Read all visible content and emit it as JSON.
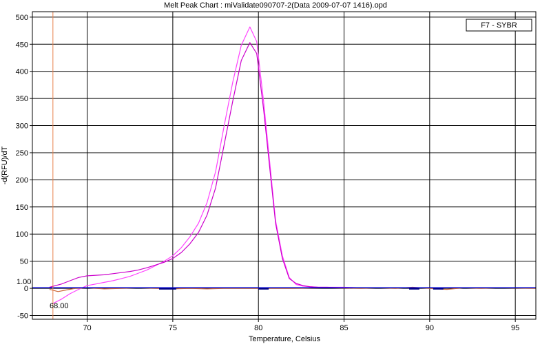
{
  "chart_data": {
    "type": "line",
    "title": "Melt Peak Chart : miValidate090707-2(Data 2009-07-07 1416).opd",
    "xlabel": "Temperature, Celsius",
    "ylabel": "-d(RFU)/dT",
    "xlim": [
      66.8,
      96.2
    ],
    "ylim": [
      -57,
      510
    ],
    "xticks": [
      70,
      75,
      80,
      85,
      90,
      95
    ],
    "yticks": [
      -50,
      0,
      50,
      100,
      150,
      200,
      250,
      300,
      350,
      400,
      450,
      500
    ],
    "grid": true,
    "legend": {
      "label": "F7 - SYBR",
      "position": "top-right"
    },
    "threshold": {
      "y": 1.0,
      "label": "1.00"
    },
    "marker": {
      "x": 68.0,
      "label": "68.00"
    },
    "series": [
      {
        "color": "#ff40ff",
        "x": [
          68.0,
          68.5,
          69.0,
          69.5,
          70.0,
          70.5,
          71.0,
          71.5,
          72.0,
          72.5,
          73.0,
          73.5,
          74.0,
          74.5,
          75.0,
          75.5,
          76.0,
          76.5,
          77.0,
          77.5,
          78.0,
          78.5,
          79.0,
          79.5,
          79.9,
          80.3,
          80.7,
          81.0,
          81.4,
          81.8,
          82.2,
          82.6,
          83.0,
          83.5,
          84.0,
          85.0,
          86.0,
          88.0,
          90.0,
          92.0,
          96.2
        ],
        "y": [
          -28,
          -20,
          -10,
          -2,
          5,
          8,
          11,
          14,
          18,
          22,
          28,
          34,
          42,
          50,
          60,
          75,
          95,
          120,
          158,
          215,
          300,
          380,
          448,
          482,
          455,
          345,
          220,
          125,
          60,
          20,
          7,
          4,
          3,
          2,
          2,
          2,
          1,
          1,
          1,
          1,
          1
        ]
      },
      {
        "color": "#cc00cc",
        "x": [
          67.8,
          68.5,
          69.0,
          69.5,
          70.0,
          70.5,
          71.0,
          71.5,
          72.0,
          72.5,
          73.0,
          73.5,
          74.0,
          74.5,
          75.0,
          75.5,
          76.0,
          76.5,
          77.0,
          77.5,
          78.0,
          78.5,
          79.0,
          79.5,
          79.9,
          80.3,
          80.7,
          81.0,
          81.4,
          81.8,
          82.2,
          82.6,
          83.0,
          83.5,
          84.0,
          85.0,
          86.0,
          88.0,
          90.0,
          92.0,
          96.2
        ],
        "y": [
          2,
          8,
          14,
          20,
          23,
          24,
          25,
          27,
          29,
          31,
          34,
          38,
          43,
          48,
          55,
          66,
          82,
          103,
          135,
          185,
          265,
          345,
          420,
          453,
          433,
          330,
          210,
          120,
          55,
          18,
          9,
          5,
          3,
          2,
          2,
          1,
          1,
          1,
          1,
          1,
          1
        ]
      },
      {
        "color": "#cc6633",
        "x": [
          67.8,
          68.3,
          68.8,
          69.3,
          70.0,
          71.0,
          72.0,
          73.0,
          74.0,
          75.0,
          76.0,
          77.0,
          78.0,
          80.0,
          82.0,
          84.0,
          86.0,
          87.0,
          88.0,
          89.0,
          90.0,
          91.0,
          92.0,
          93.0,
          94.0,
          96.2
        ],
        "y": [
          -2,
          -6,
          -3,
          0,
          1,
          -1,
          0,
          1,
          0,
          -1,
          0,
          -1,
          0,
          0,
          0,
          1,
          0,
          1,
          0,
          2,
          0,
          -2,
          1,
          0,
          1,
          0
        ]
      },
      {
        "color": "#0000cc",
        "x": [
          66.8,
          96.2
        ],
        "y": [
          1,
          1
        ]
      },
      {
        "color": "#000080",
        "x": [
          74.2,
          75.2,
          80.0,
          80.6,
          88.8,
          89.4,
          90.2,
          90.8
        ],
        "y": [
          -1,
          -1,
          -1,
          -1,
          -1,
          -1,
          -1,
          -1
        ]
      }
    ]
  }
}
